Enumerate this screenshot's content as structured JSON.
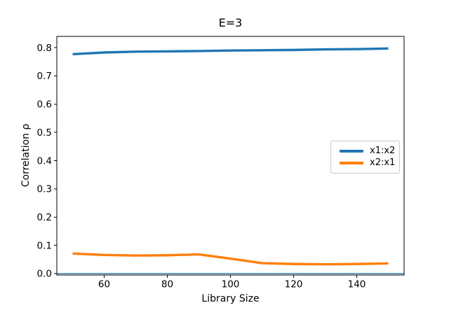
{
  "figure": {
    "title": "E=3",
    "xlabel": "Library Size",
    "ylabel": "Correlation ρ",
    "background": "#ffffff",
    "axes_edge_color": "#000000"
  },
  "chart_data": {
    "type": "line",
    "title": "E=3",
    "xlabel": "Library Size",
    "ylabel": "Correlation ρ",
    "x": [
      50,
      60,
      70,
      80,
      90,
      100,
      110,
      120,
      130,
      140,
      150
    ],
    "series": [
      {
        "name": "x1:x2",
        "color": "#1f77b4",
        "values": [
          0.777,
          0.783,
          0.786,
          0.787,
          0.788,
          0.79,
          0.791,
          0.792,
          0.794,
          0.795,
          0.797
        ]
      },
      {
        "name": "x2:x1",
        "color": "#ff7f0e",
        "values": [
          0.071,
          0.066,
          0.064,
          0.065,
          0.068,
          0.053,
          0.037,
          0.034,
          0.033,
          0.034,
          0.036
        ]
      }
    ],
    "zero_line": {
      "y": 0.0,
      "color": "#1f77b4",
      "width": 1.4
    },
    "xticks": [
      60,
      80,
      100,
      120,
      140
    ],
    "yticks": [
      0.0,
      0.1,
      0.2,
      0.3,
      0.4,
      0.5,
      0.6,
      0.7,
      0.8
    ],
    "xlim": [
      45,
      155
    ],
    "ylim": [
      -0.005,
      0.84
    ],
    "grid": false,
    "legend_position": "center right",
    "line_width": 3.4
  },
  "legend": {
    "entries": [
      {
        "label": "x1:x2",
        "color": "#1f77b4"
      },
      {
        "label": "x2:x1",
        "color": "#ff7f0e"
      }
    ]
  }
}
